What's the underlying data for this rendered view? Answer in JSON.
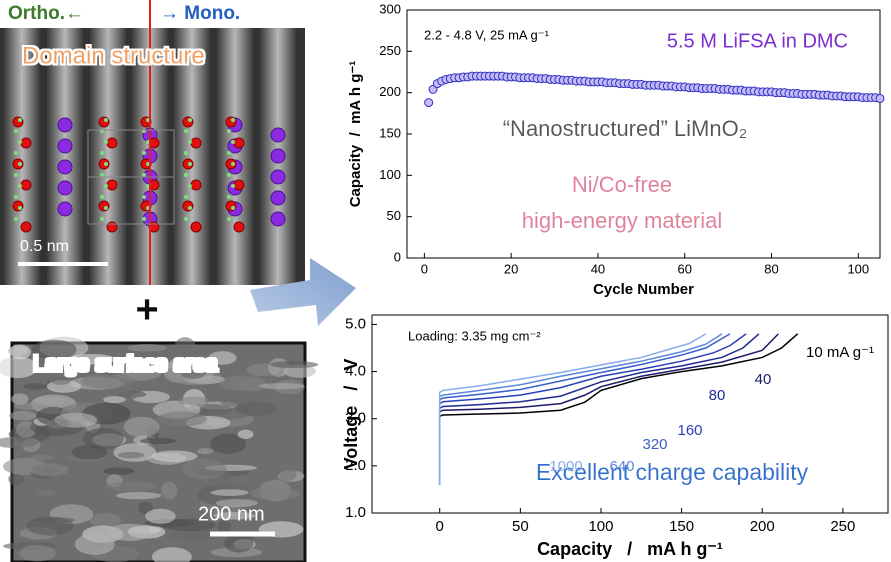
{
  "figure": {
    "ortho": "Ortho.←",
    "mono": "→ Mono.",
    "domain": "Domain structure",
    "scale_atomic": "0.5 nm",
    "plus": "+",
    "surface": "Large surface area",
    "scale_sem": "200 nm"
  },
  "chart_data": [
    {
      "type": "scatter",
      "ylabel": "Capacity  /  mA h g⁻¹",
      "xlabel": "Cycle Number",
      "annotations": [
        "2.2 - 4.8 V, 25 mA g⁻¹",
        "5.5 M LiFSA in DMC",
        "“Nanostructured” LiMnO₂",
        "Ni/Co-free",
        "high-energy material"
      ],
      "xlim": [
        -4,
        105
      ],
      "ylim": [
        0,
        300
      ],
      "xticks": [
        0,
        20,
        40,
        60,
        80,
        100
      ],
      "yticks": [
        0,
        50,
        100,
        150,
        200,
        250,
        300
      ],
      "color": "#3030c0",
      "x": [
        1,
        2,
        3,
        4,
        5,
        6,
        7,
        8,
        9,
        10,
        11,
        12,
        13,
        14,
        15,
        16,
        17,
        18,
        19,
        20,
        21,
        22,
        23,
        24,
        25,
        26,
        27,
        28,
        29,
        30,
        31,
        32,
        33,
        34,
        35,
        36,
        37,
        38,
        39,
        40,
        41,
        42,
        43,
        44,
        45,
        46,
        47,
        48,
        49,
        50,
        51,
        52,
        53,
        54,
        55,
        56,
        57,
        58,
        59,
        60,
        61,
        62,
        63,
        64,
        65,
        66,
        67,
        68,
        69,
        70,
        71,
        72,
        73,
        74,
        75,
        76,
        77,
        78,
        79,
        80,
        81,
        82,
        83,
        84,
        85,
        86,
        87,
        88,
        89,
        90,
        91,
        92,
        93,
        94,
        95,
        96,
        97,
        98,
        99,
        100,
        101,
        102,
        103,
        104,
        105
      ],
      "values": [
        188,
        204,
        211,
        214,
        216,
        217,
        218,
        218,
        219,
        219,
        220,
        220,
        220,
        220,
        220,
        220,
        220,
        220,
        219,
        219,
        219,
        218,
        218,
        218,
        218,
        217,
        217,
        217,
        216,
        216,
        216,
        215,
        215,
        215,
        214,
        214,
        214,
        213,
        213,
        213,
        213,
        212,
        212,
        212,
        211,
        211,
        211,
        210,
        210,
        210,
        209,
        209,
        209,
        209,
        208,
        208,
        208,
        207,
        207,
        207,
        206,
        206,
        206,
        205,
        205,
        205,
        205,
        204,
        204,
        204,
        203,
        203,
        203,
        202,
        202,
        202,
        201,
        201,
        201,
        201,
        200,
        200,
        200,
        199,
        199,
        199,
        198,
        198,
        198,
        198,
        197,
        197,
        197,
        196,
        196,
        196,
        195,
        195,
        195,
        195,
        194,
        194,
        194,
        194,
        193
      ]
    },
    {
      "type": "line",
      "ylabel": "Voltage   /   V",
      "xlabel": "Capacity   /   mA h g⁻¹",
      "annotations": [
        "Loading: 3.35 mg cm⁻²",
        "Excellent charge capability"
      ],
      "xlim": [
        -42,
        278
      ],
      "ylim": [
        1.0,
        5.2
      ],
      "xticks": [
        0,
        50,
        100,
        150,
        200,
        250
      ],
      "yticks": [
        {
          "value": 1,
          "label": "1.0"
        },
        {
          "value": 2,
          "label": "2.0"
        },
        {
          "value": 3,
          "label": "3.0"
        },
        {
          "value": 4,
          "label": "4.0"
        },
        {
          "value": 5,
          "label": "5.0"
        }
      ],
      "series": [
        {
          "name": "10 mA g⁻¹",
          "color": "#000000",
          "x": [
            0,
            0,
            2,
            25,
            50,
            75,
            90,
            100,
            125,
            150,
            175,
            200,
            212,
            222
          ],
          "values": [
            1.6,
            3.05,
            3.08,
            3.1,
            3.12,
            3.18,
            3.35,
            3.6,
            3.85,
            4.0,
            4.12,
            4.3,
            4.5,
            4.8
          ]
        },
        {
          "name": "40",
          "color": "#1c1c6a",
          "x": [
            0,
            0,
            2,
            25,
            50,
            75,
            90,
            100,
            125,
            150,
            175,
            200,
            210
          ],
          "values": [
            1.6,
            3.15,
            3.18,
            3.2,
            3.24,
            3.32,
            3.5,
            3.68,
            3.9,
            4.05,
            4.2,
            4.45,
            4.8
          ]
        },
        {
          "name": "80",
          "color": "#1f2a96",
          "x": [
            0,
            0,
            2,
            25,
            50,
            75,
            100,
            125,
            150,
            175,
            188,
            198
          ],
          "values": [
            1.6,
            3.22,
            3.26,
            3.3,
            3.36,
            3.48,
            3.78,
            3.98,
            4.12,
            4.3,
            4.5,
            4.8
          ]
        },
        {
          "name": "160",
          "color": "#2640b8",
          "x": [
            0,
            0,
            2,
            25,
            50,
            75,
            100,
            125,
            150,
            170,
            180,
            190
          ],
          "values": [
            1.6,
            3.32,
            3.36,
            3.42,
            3.5,
            3.66,
            3.9,
            4.05,
            4.22,
            4.4,
            4.55,
            4.8
          ]
        },
        {
          "name": "320",
          "color": "#3a5ecc",
          "x": [
            0,
            0,
            2,
            25,
            50,
            75,
            100,
            125,
            150,
            165,
            180
          ],
          "values": [
            1.6,
            3.4,
            3.44,
            3.52,
            3.62,
            3.8,
            3.98,
            4.15,
            4.35,
            4.5,
            4.8
          ]
        },
        {
          "name": "640",
          "color": "#5a86dc",
          "x": [
            0,
            0,
            2,
            25,
            50,
            75,
            100,
            125,
            150,
            165,
            175
          ],
          "values": [
            1.6,
            3.47,
            3.5,
            3.6,
            3.72,
            3.9,
            4.06,
            4.22,
            4.42,
            4.58,
            4.8
          ]
        },
        {
          "name": "1000",
          "color": "#86acec",
          "x": [
            0,
            0,
            2,
            25,
            50,
            75,
            100,
            125,
            140,
            155,
            165
          ],
          "values": [
            1.6,
            3.56,
            3.6,
            3.7,
            3.84,
            3.98,
            4.14,
            4.3,
            4.45,
            4.6,
            4.8
          ]
        }
      ]
    }
  ]
}
